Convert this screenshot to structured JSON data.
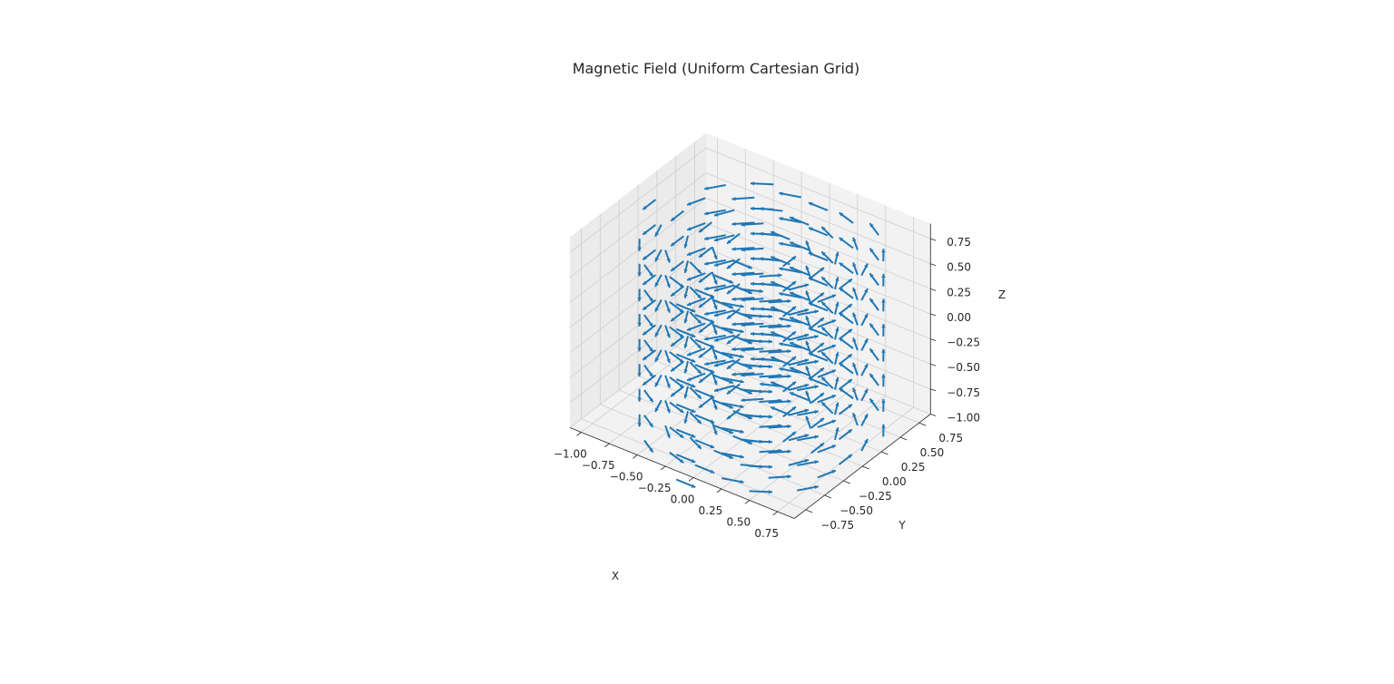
{
  "chart_data": {
    "type": "quiver3d",
    "title": "Magnetic Field (Uniform Cartesian Grid)",
    "xlabel": "X",
    "ylabel": "Y",
    "zlabel": "Z",
    "xlim": [
      -1.1,
      0.9
    ],
    "ylim": [
      -0.9,
      0.9
    ],
    "zlim": [
      -1.0,
      0.9
    ],
    "x_ticks": [
      "−1.00",
      "−0.75",
      "−0.50",
      "−0.25",
      "0.00",
      "0.25",
      "0.50",
      "0.75"
    ],
    "y_ticks": [
      "−0.75",
      "−0.50",
      "−0.25",
      "0.00",
      "0.25",
      "0.50",
      "0.75"
    ],
    "z_ticks": [
      "−1.00",
      "−0.75",
      "−0.50",
      "−0.25",
      "0.00",
      "0.25",
      "0.50",
      "0.75"
    ],
    "grid": true,
    "field": {
      "description_of_vectors": "circulating field around z-axis: (u, v, w) = (-y, x, 0) normalized",
      "grid_min": -1.0,
      "grid_max": 0.75,
      "grid_step": 0.25,
      "z_levels": [
        -1.0,
        -0.75,
        -0.5,
        -0.25,
        0.0,
        0.25,
        0.5,
        0.75
      ]
    },
    "colors": {
      "arrow": "#1f77b4",
      "pane": "#f2f2f2",
      "pane_side": "#ebebeb",
      "grid": "#cfcfcf"
    }
  }
}
